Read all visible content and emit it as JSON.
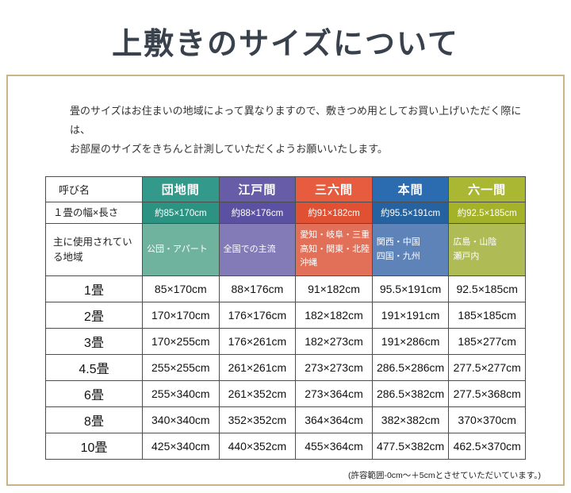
{
  "title": "上敷きのサイズについて",
  "intro": {
    "line1": "畳のサイズはお住まいの地域によって異なりますので、敷きつめ用としてお買い上げいただく際には、",
    "line2": "お部屋のサイズをきちんと計測していただくようお願いいたします。"
  },
  "table": {
    "name_header": "呼び名",
    "width_header": "１畳の幅×長さ",
    "region_header": "主に使用されている地域",
    "columns": [
      {
        "label": "団地間",
        "header_color": "#33998a",
        "size_color": "#2c9383",
        "region_color": "#6fb39e",
        "one_mat_size": "約85×170cm",
        "regions": [
          "公団・アパート"
        ]
      },
      {
        "label": "江戸間",
        "header_color": "#675ca7",
        "size_color": "#5b51a3",
        "region_color": "#837bb7",
        "one_mat_size": "約88×176cm",
        "regions": [
          "全国での主流"
        ]
      },
      {
        "label": "三六間",
        "header_color": "#e75b3f",
        "size_color": "#e05134",
        "region_color": "#e26f58",
        "one_mat_size": "約91×182cm",
        "regions": [
          "愛知・岐阜・三重",
          "高知・関東・北陸",
          "沖縄"
        ]
      },
      {
        "label": "本間",
        "header_color": "#2b6bb0",
        "size_color": "#25629f",
        "region_color": "#5d83b8",
        "one_mat_size": "約95.5×191cm",
        "regions": [
          "関西・中国",
          "四国・九州"
        ]
      },
      {
        "label": "六一間",
        "header_color": "#aab733",
        "size_color": "#a4b22a",
        "region_color": "#afbc55",
        "one_mat_size": "約92.5×185cm",
        "regions": [
          "広島・山陰",
          "瀬戸内"
        ]
      }
    ],
    "rows": [
      {
        "label": "1畳",
        "values": [
          "85×170cm",
          "88×176cm",
          "91×182cm",
          "95.5×191cm",
          "92.5×185cm"
        ]
      },
      {
        "label": "2畳",
        "values": [
          "170×170cm",
          "176×176cm",
          "182×182cm",
          "191×191cm",
          "185×185cm"
        ]
      },
      {
        "label": "3畳",
        "values": [
          "170×255cm",
          "176×261cm",
          "182×273cm",
          "191×286cm",
          "185×277cm"
        ]
      },
      {
        "label": "4.5畳",
        "values": [
          "255×255cm",
          "261×261cm",
          "273×273cm",
          "286.5×286cm",
          "277.5×277cm"
        ]
      },
      {
        "label": "6畳",
        "values": [
          "255×340cm",
          "261×352cm",
          "273×364cm",
          "286.5×382cm",
          "277.5×368cm"
        ]
      },
      {
        "label": "8畳",
        "values": [
          "340×340cm",
          "352×352cm",
          "364×364cm",
          "382×382cm",
          "370×370cm"
        ]
      },
      {
        "label": "10畳",
        "values": [
          "425×340cm",
          "440×352cm",
          "455×364cm",
          "477.5×382cm",
          "462.5×370cm"
        ]
      }
    ]
  },
  "note": "(許容範囲-0cm～＋5cmとさせていただいています。)"
}
